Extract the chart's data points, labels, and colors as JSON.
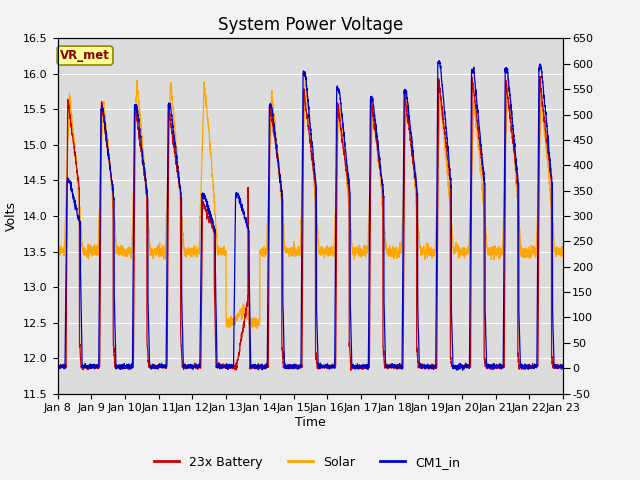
{
  "title": "System Power Voltage",
  "xlabel": "Time",
  "ylabel": "Volts",
  "ylim_left": [
    11.5,
    16.5
  ],
  "ylim_right": [
    -50,
    650
  ],
  "yticks_left": [
    11.5,
    12.0,
    12.5,
    13.0,
    13.5,
    14.0,
    14.5,
    15.0,
    15.5,
    16.0,
    16.5
  ],
  "yticks_right": [
    -50,
    0,
    50,
    100,
    150,
    200,
    250,
    300,
    350,
    400,
    450,
    500,
    550,
    600,
    650
  ],
  "xticklabels": [
    "Jan 8",
    "Jan 9",
    "Jan 10",
    "Jan 11",
    "Jan 12",
    "Jan 13",
    "Jan 14",
    "Jan 15",
    "Jan 16",
    "Jan 17",
    "Jan 18",
    "Jan 19",
    "Jan 20",
    "Jan 21",
    "Jan 22",
    "Jan 23"
  ],
  "annotation_text": "VR_met",
  "annotation_color": "#8B0000",
  "annotation_bg": "#FFFF99",
  "annotation_border": "#8B8B00",
  "colors": {
    "battery": "#CC0000",
    "solar": "#FFA500",
    "cm1": "#0000CC"
  },
  "legend_labels": [
    "23x Battery",
    "Solar",
    "CM1_in"
  ],
  "background_color": "#DCDCDC",
  "grid_color": "#FFFFFF",
  "title_fontsize": 12,
  "axis_fontsize": 9,
  "tick_fontsize": 8,
  "n_days": 15,
  "pts_per_day": 200
}
